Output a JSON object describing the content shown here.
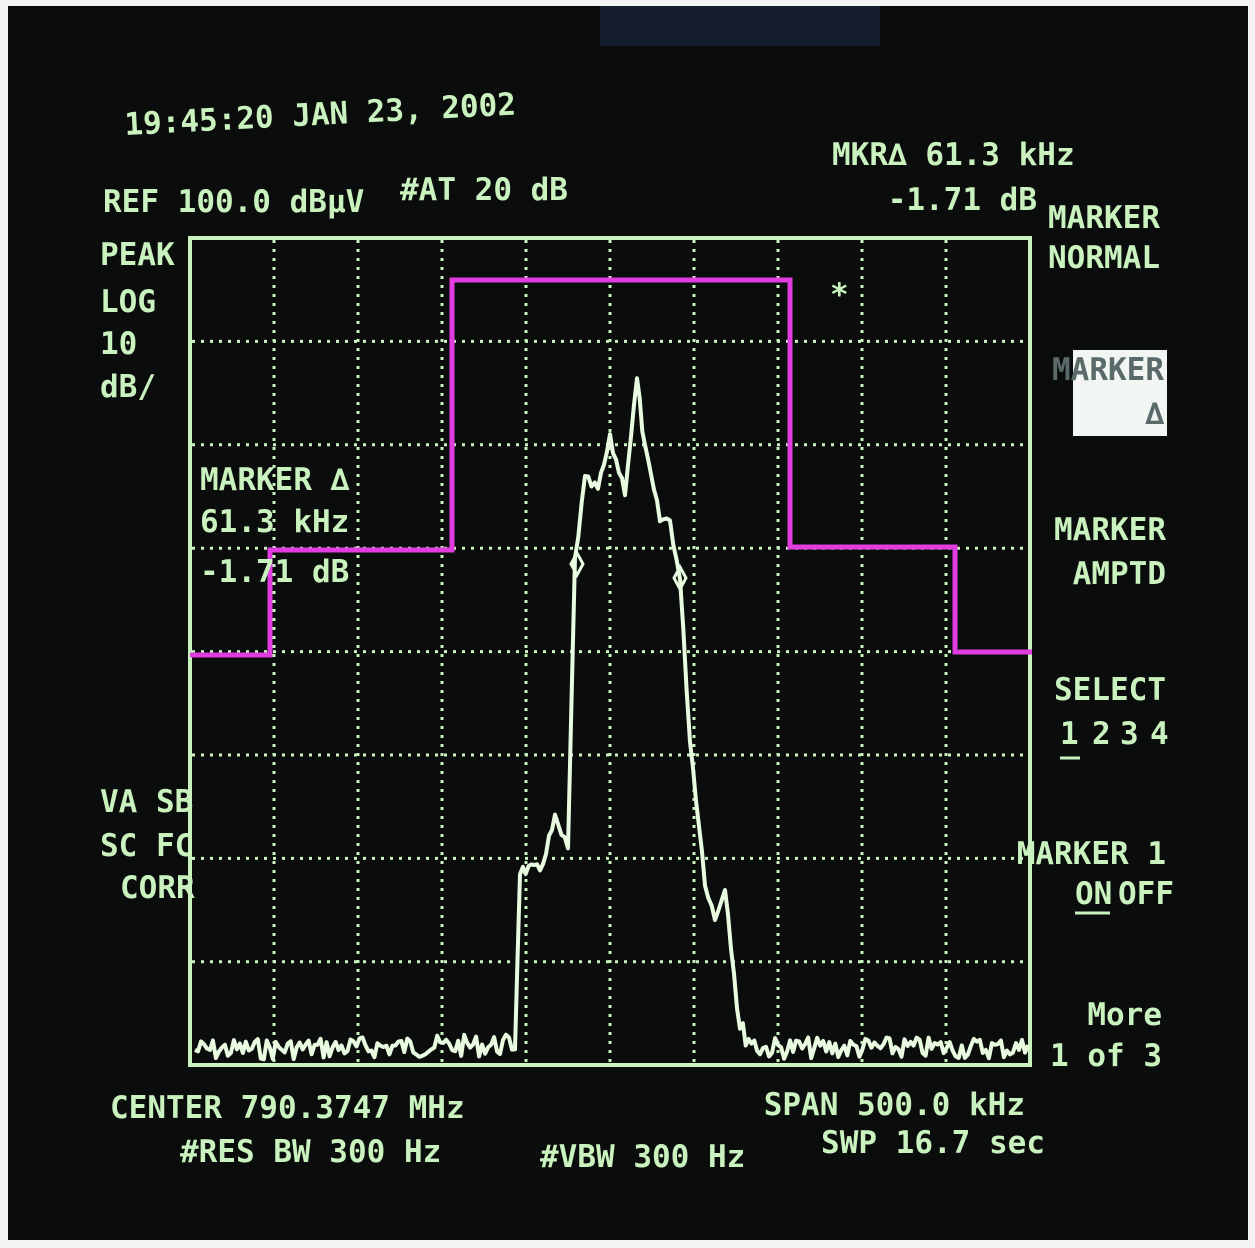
{
  "header": {
    "timestamp": "19:45:20 JAN 23, 2002",
    "reference": "REF 100.0 dBµV",
    "attenuation": "#AT 20 dB",
    "marker_readout": [
      "MKR∆ 61.3 kHz",
      "-1.71 dB"
    ]
  },
  "left_labels": {
    "detector": "PEAK",
    "scale": [
      "LOG",
      "10",
      "dB/"
    ],
    "status": [
      "VA SB",
      "SC FC",
      "CORR"
    ]
  },
  "marker_box": [
    "MARKER ∆",
    "61.3 kHz",
    "-1.71 dB"
  ],
  "trace_symbol": "*",
  "softkeys": {
    "marker_normal": [
      "MARKER",
      "NORMAL"
    ],
    "marker_delta": [
      "MARKER",
      "∆"
    ],
    "marker_amptd": [
      "MARKER",
      "AMPTD"
    ],
    "select": {
      "label": "SELECT",
      "options": [
        "1",
        "2",
        "3",
        "4"
      ]
    },
    "marker_on_off": {
      "label": "MARKER 1",
      "options": [
        "ON",
        "OFF"
      ]
    },
    "more": [
      "More",
      "1 of 3"
    ]
  },
  "footer": {
    "center": "CENTER 790.3747 MHz",
    "res_bw": "#RES BW 300 Hz",
    "vbw": "#VBW 300 Hz",
    "span": "SPAN 500.0 kHz",
    "sweep": "SWP 16.7  sec"
  }
}
